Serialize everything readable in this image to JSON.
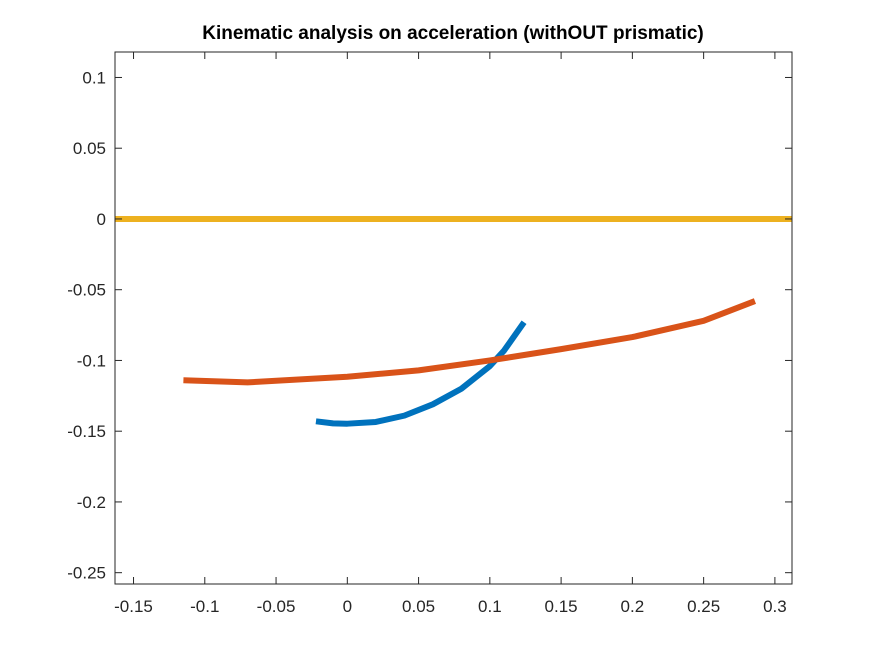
{
  "chart_data": {
    "type": "line",
    "title": "Kinematic analysis on acceleration (withOUT prismatic)",
    "xlabel": "",
    "ylabel": "",
    "xlim": [
      -0.163,
      0.312
    ],
    "ylim": [
      -0.258,
      0.118
    ],
    "xticks": [
      -0.15,
      -0.1,
      -0.05,
      0,
      0.05,
      0.1,
      0.15,
      0.2,
      0.25,
      0.3
    ],
    "xtick_labels": [
      "-0.15",
      "-0.1",
      "-0.05",
      "0",
      "0.05",
      "0.1",
      "0.15",
      "0.2",
      "0.25",
      "0.3"
    ],
    "yticks": [
      -0.25,
      -0.2,
      -0.15,
      -0.1,
      -0.05,
      0,
      0.05,
      0.1
    ],
    "ytick_labels": [
      "-0.25",
      "-0.2",
      "-0.15",
      "-0.1",
      "-0.05",
      "0",
      "0.05",
      "0.1"
    ],
    "grid": false,
    "series": [
      {
        "color": "#0072BD",
        "x": [
          -0.022,
          -0.01,
          0.0,
          0.02,
          0.04,
          0.06,
          0.08,
          0.1,
          0.11,
          0.124
        ],
        "y": [
          -0.143,
          -0.1445,
          -0.1447,
          -0.1435,
          -0.139,
          -0.131,
          -0.12,
          -0.104,
          -0.093,
          -0.073
        ]
      },
      {
        "color": "#D95319",
        "x": [
          -0.115,
          -0.07,
          0.0,
          0.05,
          0.1,
          0.15,
          0.2,
          0.25,
          0.286
        ],
        "y": [
          -0.114,
          -0.1155,
          -0.1115,
          -0.107,
          -0.1,
          -0.092,
          -0.0835,
          -0.072,
          -0.058
        ]
      },
      {
        "color": "#EDB120",
        "x": [
          -0.163,
          0.312
        ],
        "y": [
          0,
          0
        ]
      }
    ]
  }
}
